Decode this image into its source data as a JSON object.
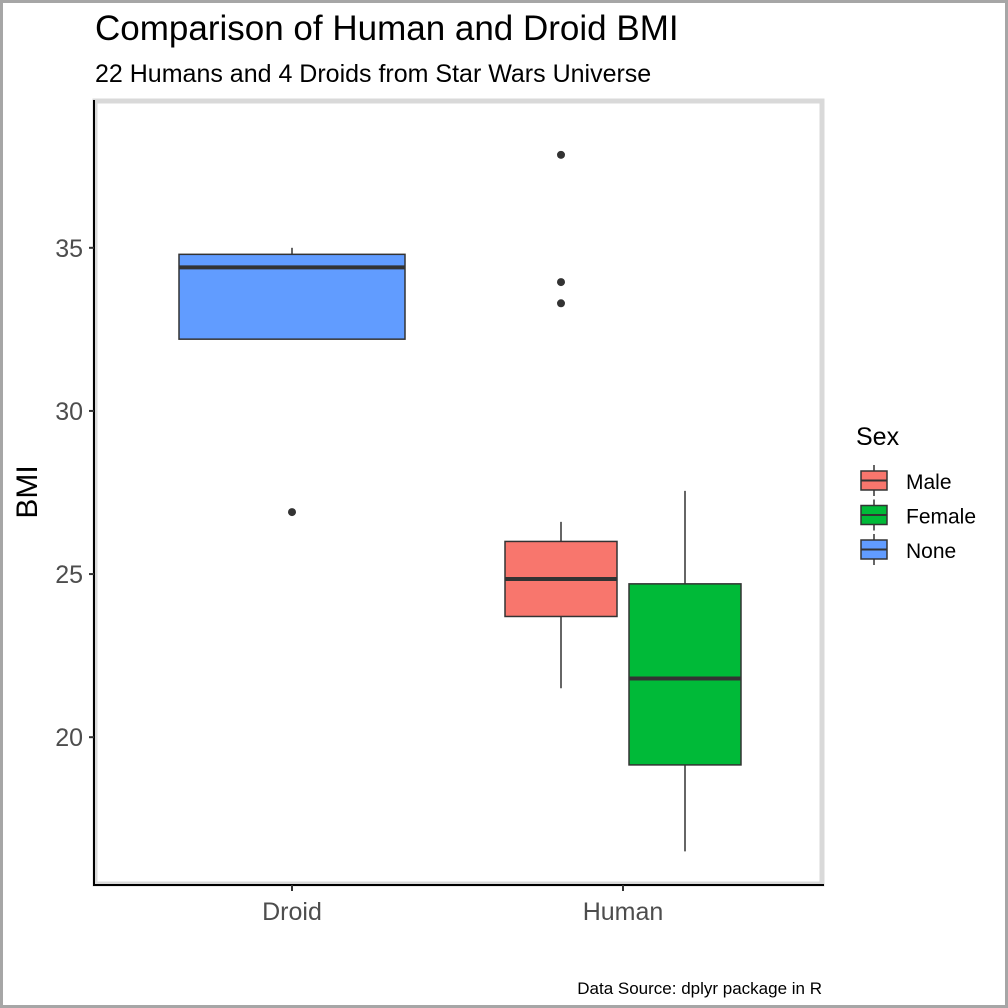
{
  "chart_data": {
    "type": "boxplot",
    "title": "Comparison of Human and Droid BMI",
    "subtitle": "22 Humans and 4 Droids from Star Wars Universe",
    "xlabel": "",
    "ylabel": "BMI",
    "caption": "Data Source: dplyr package in R",
    "ylim": [
      15.5,
      39.5
    ],
    "yticks": [
      20,
      25,
      30,
      35
    ],
    "ytick_labels": [
      "20",
      "25",
      "30",
      "35"
    ],
    "categories": [
      "Droid",
      "Human"
    ],
    "legend": {
      "title": "Sex",
      "position": "right",
      "entries": [
        "Male",
        "Female",
        "None"
      ]
    },
    "colors": {
      "Male": "#f8766d",
      "Female": "#00ba38",
      "None": "#619cff",
      "axis": "#000000",
      "panel_border": "#d9d9d9"
    },
    "boxes": [
      {
        "category": "Droid",
        "sex": "None",
        "whisker_low": 32.2,
        "q1": 32.2,
        "median": 34.4,
        "q3": 34.8,
        "whisker_high": 35.0,
        "outliers": [
          26.9
        ]
      },
      {
        "category": "Human",
        "sex": "Male",
        "whisker_low": 21.5,
        "q1": 23.7,
        "median": 24.85,
        "q3": 26.0,
        "whisker_high": 26.6,
        "outliers": [
          33.3,
          33.95,
          37.85
        ]
      },
      {
        "category": "Human",
        "sex": "Female",
        "whisker_low": 16.5,
        "q1": 19.15,
        "median": 21.8,
        "q3": 24.7,
        "whisker_high": 27.55,
        "outliers": []
      }
    ]
  }
}
